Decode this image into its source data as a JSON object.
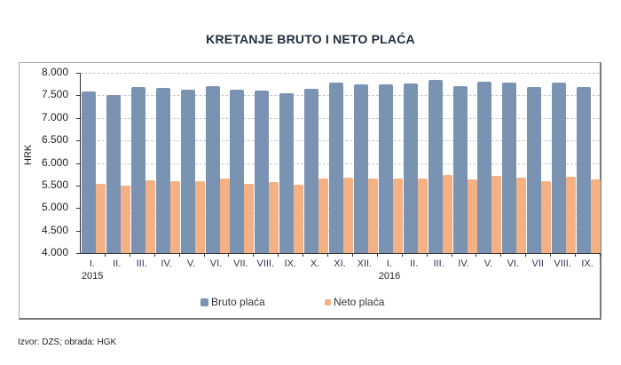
{
  "title": "KRETANJE BRUTO I NETO PLAĆA",
  "source": "Izvor: DZS; obrada: HGK",
  "colors": {
    "bruto": "#7b93b3",
    "neto": "#f4b183",
    "grid": "#c8c8c8",
    "axis": "#333333"
  },
  "chart_data": {
    "type": "bar",
    "title": "KRETANJE BRUTO I NETO PLAĆA",
    "xlabel": "",
    "ylabel": "HRK",
    "ylim": [
      4000,
      8000
    ],
    "yticks": [
      "4.000",
      "4.500",
      "5.000",
      "5.500",
      "6.000",
      "6.500",
      "7.000",
      "7.500",
      "8.000"
    ],
    "ytick_values": [
      4000,
      4500,
      5000,
      5500,
      6000,
      6500,
      7000,
      7500,
      8000
    ],
    "grid": true,
    "legend_position": "bottom",
    "categories": [
      "I.",
      "II.",
      "III.",
      "IV.",
      "V.",
      "VI.",
      "VII.",
      "VIII.",
      "IX.",
      "X.",
      "XI.",
      "XII.",
      "I.",
      "II.",
      "III.",
      "IV.",
      "V.",
      "VI.",
      "VII",
      "VIII.",
      "IX."
    ],
    "year_labels": [
      {
        "label": "2015",
        "index": 0
      },
      {
        "label": "2016",
        "index": 12
      }
    ],
    "series": [
      {
        "name": "Bruto plaća",
        "color": "#7b93b3",
        "values": [
          7580,
          7510,
          7690,
          7660,
          7630,
          7710,
          7620,
          7610,
          7550,
          7640,
          7790,
          7740,
          7740,
          7760,
          7840,
          7710,
          7810,
          7790,
          7690,
          7780,
          7690
        ]
      },
      {
        "name": "Neto plaća",
        "color": "#f4b183",
        "values": [
          5540,
          5500,
          5620,
          5590,
          5590,
          5660,
          5530,
          5570,
          5520,
          5650,
          5680,
          5660,
          5660,
          5660,
          5740,
          5630,
          5710,
          5680,
          5600,
          5690,
          5640
        ]
      }
    ]
  }
}
